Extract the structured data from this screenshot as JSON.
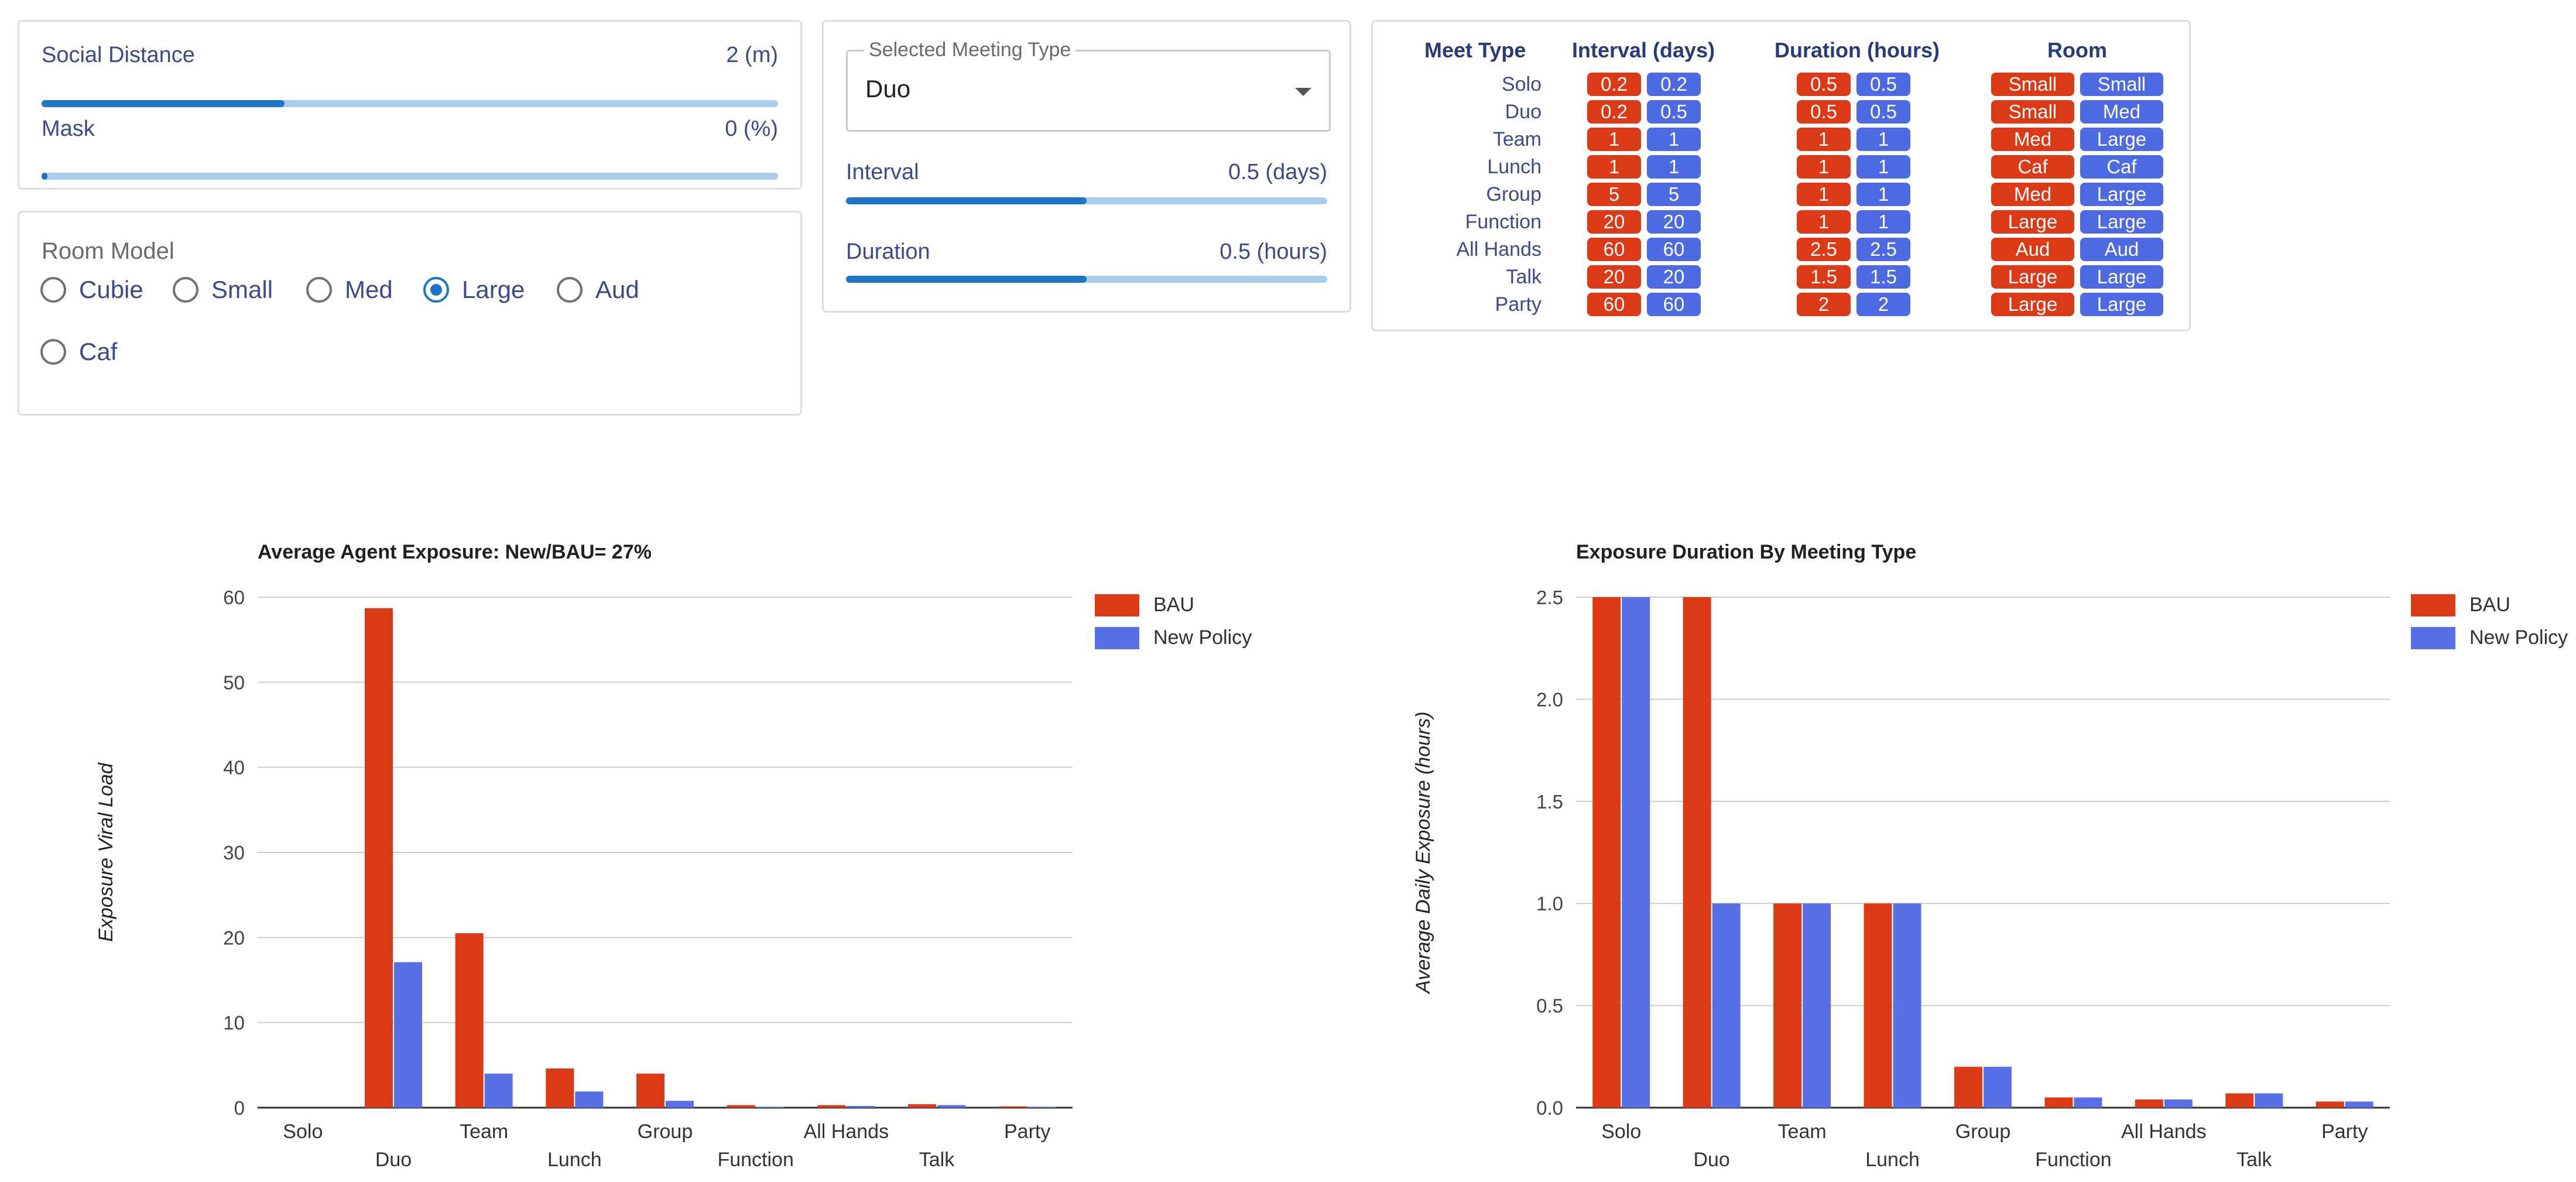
{
  "controls": {
    "social_distance": {
      "label": "Social Distance",
      "value_text": "2 (m)",
      "fraction": 0.33
    },
    "mask": {
      "label": "Mask",
      "value_text": "0 (%)",
      "fraction": 0.0
    },
    "room_model": {
      "title": "Room Model",
      "options": [
        "Cubie",
        "Small",
        "Med",
        "Large",
        "Aud",
        "Caf"
      ],
      "selected": "Large"
    }
  },
  "meeting": {
    "select_legend": "Selected Meeting Type",
    "selected_value": "Duo",
    "interval": {
      "label": "Interval",
      "value_text": "0.5 (days)",
      "fraction": 0.5
    },
    "duration": {
      "label": "Duration",
      "value_text": "0.5 (hours)",
      "fraction": 0.5
    }
  },
  "table": {
    "headers": {
      "meet_type": "Meet Type",
      "interval": "Interval (days)",
      "duration": "Duration (hours)",
      "room": "Room"
    },
    "rows": [
      {
        "type": "Solo",
        "interval": [
          "0.2",
          "0.2"
        ],
        "duration": [
          "0.5",
          "0.5"
        ],
        "room": [
          "Small",
          "Small"
        ]
      },
      {
        "type": "Duo",
        "interval": [
          "0.2",
          "0.5"
        ],
        "duration": [
          "0.5",
          "0.5"
        ],
        "room": [
          "Small",
          "Med"
        ]
      },
      {
        "type": "Team",
        "interval": [
          "1",
          "1"
        ],
        "duration": [
          "1",
          "1"
        ],
        "room": [
          "Med",
          "Large"
        ]
      },
      {
        "type": "Lunch",
        "interval": [
          "1",
          "1"
        ],
        "duration": [
          "1",
          "1"
        ],
        "room": [
          "Caf",
          "Caf"
        ]
      },
      {
        "type": "Group",
        "interval": [
          "5",
          "5"
        ],
        "duration": [
          "1",
          "1"
        ],
        "room": [
          "Med",
          "Large"
        ]
      },
      {
        "type": "Function",
        "interval": [
          "20",
          "20"
        ],
        "duration": [
          "1",
          "1"
        ],
        "room": [
          "Large",
          "Large"
        ]
      },
      {
        "type": "All Hands",
        "interval": [
          "60",
          "60"
        ],
        "duration": [
          "2.5",
          "2.5"
        ],
        "room": [
          "Aud",
          "Aud"
        ]
      },
      {
        "type": "Talk",
        "interval": [
          "20",
          "20"
        ],
        "duration": [
          "1.5",
          "1.5"
        ],
        "room": [
          "Large",
          "Large"
        ]
      },
      {
        "type": "Party",
        "interval": [
          "60",
          "60"
        ],
        "duration": [
          "2",
          "2"
        ],
        "room": [
          "Large",
          "Large"
        ]
      }
    ]
  },
  "colors": {
    "bau": "#dc3a16",
    "new_policy": "#5870e6",
    "accent": "#1e74c8"
  },
  "chart_data": [
    {
      "type": "bar",
      "title": "Average Agent Exposure: New/BAU= 27%",
      "xlabel": "",
      "ylabel": "Exposure Viral Load",
      "categories": [
        "Solo",
        "Duo",
        "Team",
        "Lunch",
        "Group",
        "Function",
        "All Hands",
        "Talk",
        "Party"
      ],
      "series": [
        {
          "name": "BAU",
          "values": [
            0,
            58.7,
            20.5,
            4.6,
            4.0,
            0.3,
            0.3,
            0.4,
            0.15
          ]
        },
        {
          "name": "New Policy",
          "values": [
            0,
            17.1,
            4.0,
            1.9,
            0.8,
            0.1,
            0.2,
            0.3,
            0.1
          ]
        }
      ],
      "ylim": [
        0,
        60
      ],
      "yticks": [
        "0",
        "10",
        "20",
        "30",
        "40",
        "50",
        "60"
      ],
      "legend": "right"
    },
    {
      "type": "bar",
      "title": "Exposure Duration By Meeting Type",
      "xlabel": "",
      "ylabel": "Average Daily Exposure (hours)",
      "categories": [
        "Solo",
        "Duo",
        "Team",
        "Lunch",
        "Group",
        "Function",
        "All Hands",
        "Talk",
        "Party"
      ],
      "series": [
        {
          "name": "BAU",
          "values": [
            2.5,
            2.5,
            1.0,
            1.0,
            0.2,
            0.05,
            0.04,
            0.07,
            0.03
          ]
        },
        {
          "name": "New Policy",
          "values": [
            2.5,
            1.0,
            1.0,
            1.0,
            0.2,
            0.05,
            0.04,
            0.07,
            0.03
          ]
        }
      ],
      "ylim": [
        0,
        2.5
      ],
      "yticks": [
        "0.0",
        "0.5",
        "1.0",
        "1.5",
        "2.0",
        "2.5"
      ],
      "legend": "right"
    }
  ]
}
